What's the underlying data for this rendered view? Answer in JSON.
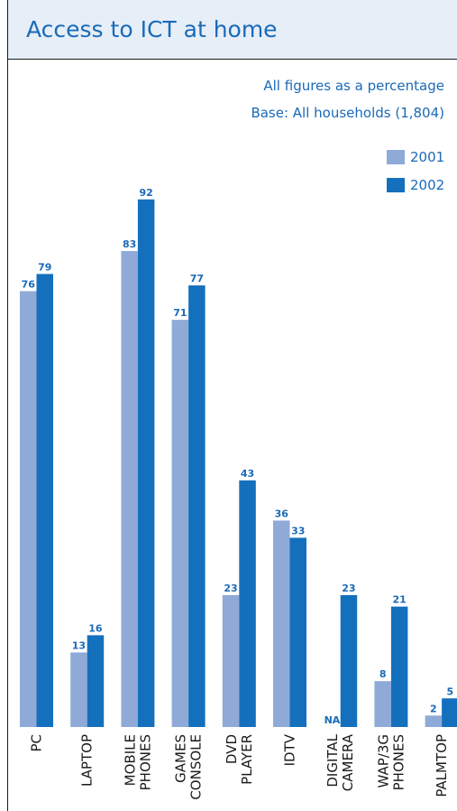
{
  "title": "Access to ICT at home",
  "notes": {
    "line1": "All figures as a percentage",
    "line2": "Base: All households (1,804)"
  },
  "colors": {
    "series_2001": "#8faad6",
    "series_2002": "#1470bd",
    "label_text": "#1a6ab8",
    "title_bg": "#e6eef8"
  },
  "chart_data": {
    "type": "bar",
    "categories": [
      "PC",
      "LAPTOP",
      "MOBILE PHONES",
      "GAMES CONSOLE",
      "DVD PLAYER",
      "IDTV",
      "DIGITAL CAMERA",
      "WAP/3G PHONES",
      "PALMTOP"
    ],
    "category_lines": [
      [
        "PC"
      ],
      [
        "LAPTOP"
      ],
      [
        "MOBILE",
        "PHONES"
      ],
      [
        "GAMES",
        "CONSOLE"
      ],
      [
        "DVD",
        "PLAYER"
      ],
      [
        "IDTV"
      ],
      [
        "DIGITAL",
        "CAMERA"
      ],
      [
        "WAP/3G",
        "PHONES"
      ],
      [
        "PALMTOP"
      ]
    ],
    "series": [
      {
        "name": "2001",
        "values": [
          76,
          13,
          83,
          71,
          23,
          36,
          null,
          8,
          2
        ],
        "labels": [
          "76",
          "13",
          "83",
          "71",
          "23",
          "36",
          "NA",
          "8",
          "2"
        ]
      },
      {
        "name": "2002",
        "values": [
          79,
          16,
          92,
          77,
          43,
          33,
          23,
          21,
          5
        ],
        "labels": [
          "79",
          "16",
          "92",
          "77",
          "43",
          "33",
          "23",
          "21",
          "5"
        ]
      }
    ],
    "ylim": [
      0,
      100
    ],
    "legend_position": "top-right",
    "grid": false
  }
}
